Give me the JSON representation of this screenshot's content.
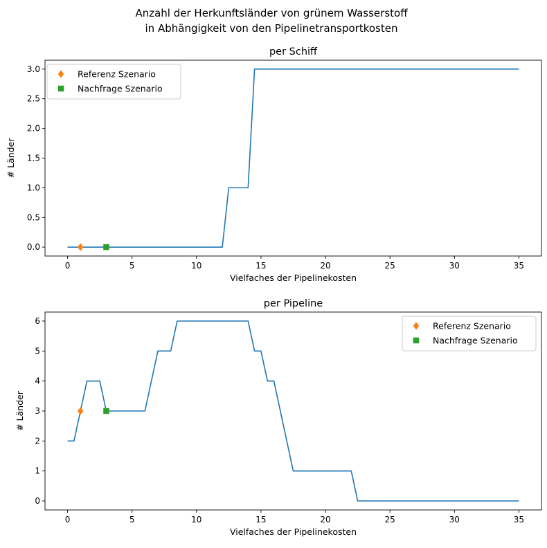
{
  "figure": {
    "suptitle_line1": "Anzahl der Herkunftsländer von grünem Wasserstoff",
    "suptitle_line2": "in Abhängigkeit von den Pipelinetransportkosten"
  },
  "colors": {
    "line": "#1f77b4",
    "reference": "#ff7f0e",
    "demand": "#2ca02c",
    "axis": "#000000"
  },
  "chart_data": [
    {
      "type": "line",
      "title": "per Schiff",
      "xlabel": "Vielfaches der Pipelinekosten",
      "ylabel": "# Länder",
      "xlim": [
        -1.75,
        36.75
      ],
      "ylim": [
        -0.15,
        3.15
      ],
      "xticks": [
        0,
        5,
        10,
        15,
        20,
        25,
        30,
        35
      ],
      "xtick_labels": [
        "0",
        "5",
        "10",
        "15",
        "20",
        "25",
        "30",
        "35"
      ],
      "yticks": [
        0,
        0.5,
        1,
        1.5,
        2,
        2.5,
        3
      ],
      "ytick_labels": [
        "0.0",
        "0.5",
        "1.0",
        "1.5",
        "2.0",
        "2.5",
        "3.0"
      ],
      "grid": false,
      "legend_position": "upper-left",
      "series": [
        {
          "kind": "line",
          "color": "#1f77b4",
          "x": [
            0,
            12,
            12.5,
            13,
            14,
            14.5,
            35
          ],
          "y": [
            0,
            0,
            1,
            1,
            1,
            3,
            3
          ]
        },
        {
          "name": "Referenz Szenario",
          "kind": "marker",
          "marker": "diamond",
          "color": "#ff7f0e",
          "x": [
            1
          ],
          "y": [
            0
          ]
        },
        {
          "name": "Nachfrage Szenario",
          "kind": "marker",
          "marker": "square",
          "color": "#2ca02c",
          "x": [
            3
          ],
          "y": [
            0
          ]
        }
      ]
    },
    {
      "type": "line",
      "title": "per Pipeline",
      "xlabel": "Vielfaches der Pipelinekosten",
      "ylabel": "# Länder",
      "xlim": [
        -1.75,
        36.75
      ],
      "ylim": [
        -0.3,
        6.3
      ],
      "xticks": [
        0,
        5,
        10,
        15,
        20,
        25,
        30,
        35
      ],
      "xtick_labels": [
        "0",
        "5",
        "10",
        "15",
        "20",
        "25",
        "30",
        "35"
      ],
      "yticks": [
        0,
        1,
        2,
        3,
        4,
        5,
        6
      ],
      "ytick_labels": [
        "0",
        "1",
        "2",
        "3",
        "4",
        "5",
        "6"
      ],
      "grid": false,
      "legend_position": "upper-right",
      "series": [
        {
          "kind": "line",
          "color": "#1f77b4",
          "x": [
            0,
            0.5,
            1.5,
            2.5,
            3,
            6,
            7,
            8,
            8.5,
            14,
            14.5,
            15,
            15.5,
            16,
            17.5,
            22,
            22.5,
            35
          ],
          "y": [
            2,
            2,
            4,
            4,
            3,
            3,
            5,
            5,
            6,
            6,
            5,
            5,
            4,
            4,
            1,
            1,
            0,
            0
          ]
        },
        {
          "name": "Referenz Szenario",
          "kind": "marker",
          "marker": "diamond",
          "color": "#ff7f0e",
          "x": [
            1
          ],
          "y": [
            3
          ]
        },
        {
          "name": "Nachfrage Szenario",
          "kind": "marker",
          "marker": "square",
          "color": "#2ca02c",
          "x": [
            3
          ],
          "y": [
            3
          ]
        }
      ]
    }
  ]
}
